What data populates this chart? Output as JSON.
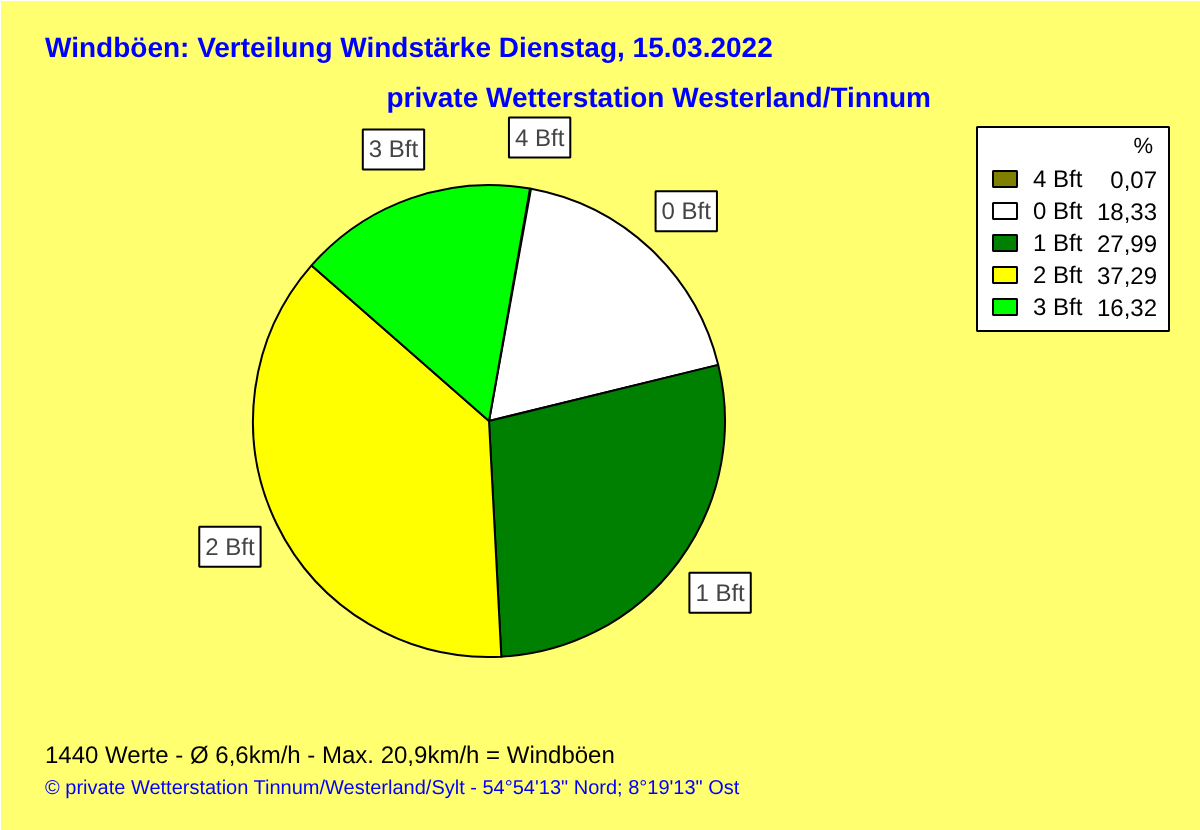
{
  "chart_data": {
    "type": "pie",
    "title": "Windböen: Verteilung Windstärke  Dienstag, 15.03.2022",
    "subtitle": "private Wetterstation Westerland/Tinnum",
    "legend_title": "%",
    "legend": "top right",
    "categories": [
      "4 Bft",
      "0 Bft",
      "1 Bft",
      "2 Bft",
      "3 Bft"
    ],
    "values": [
      0.07,
      18.33,
      27.99,
      37.29,
      16.32
    ],
    "value_labels": [
      "0,07",
      "18,33",
      "27,99",
      "37,29",
      "16,32"
    ],
    "colors": [
      "#808000",
      "#ffffff",
      "#008000",
      "#ffff00",
      "#00ff00"
    ],
    "annotations": [
      "1440 Werte   -   Ø 6,6km/h  -  Max. 20,9km/h = Windböen",
      "© private Wetterstation Tinnum/Westerland/Sylt   -   54°54'13\" Nord; 8°19'13\" Ost"
    ]
  }
}
